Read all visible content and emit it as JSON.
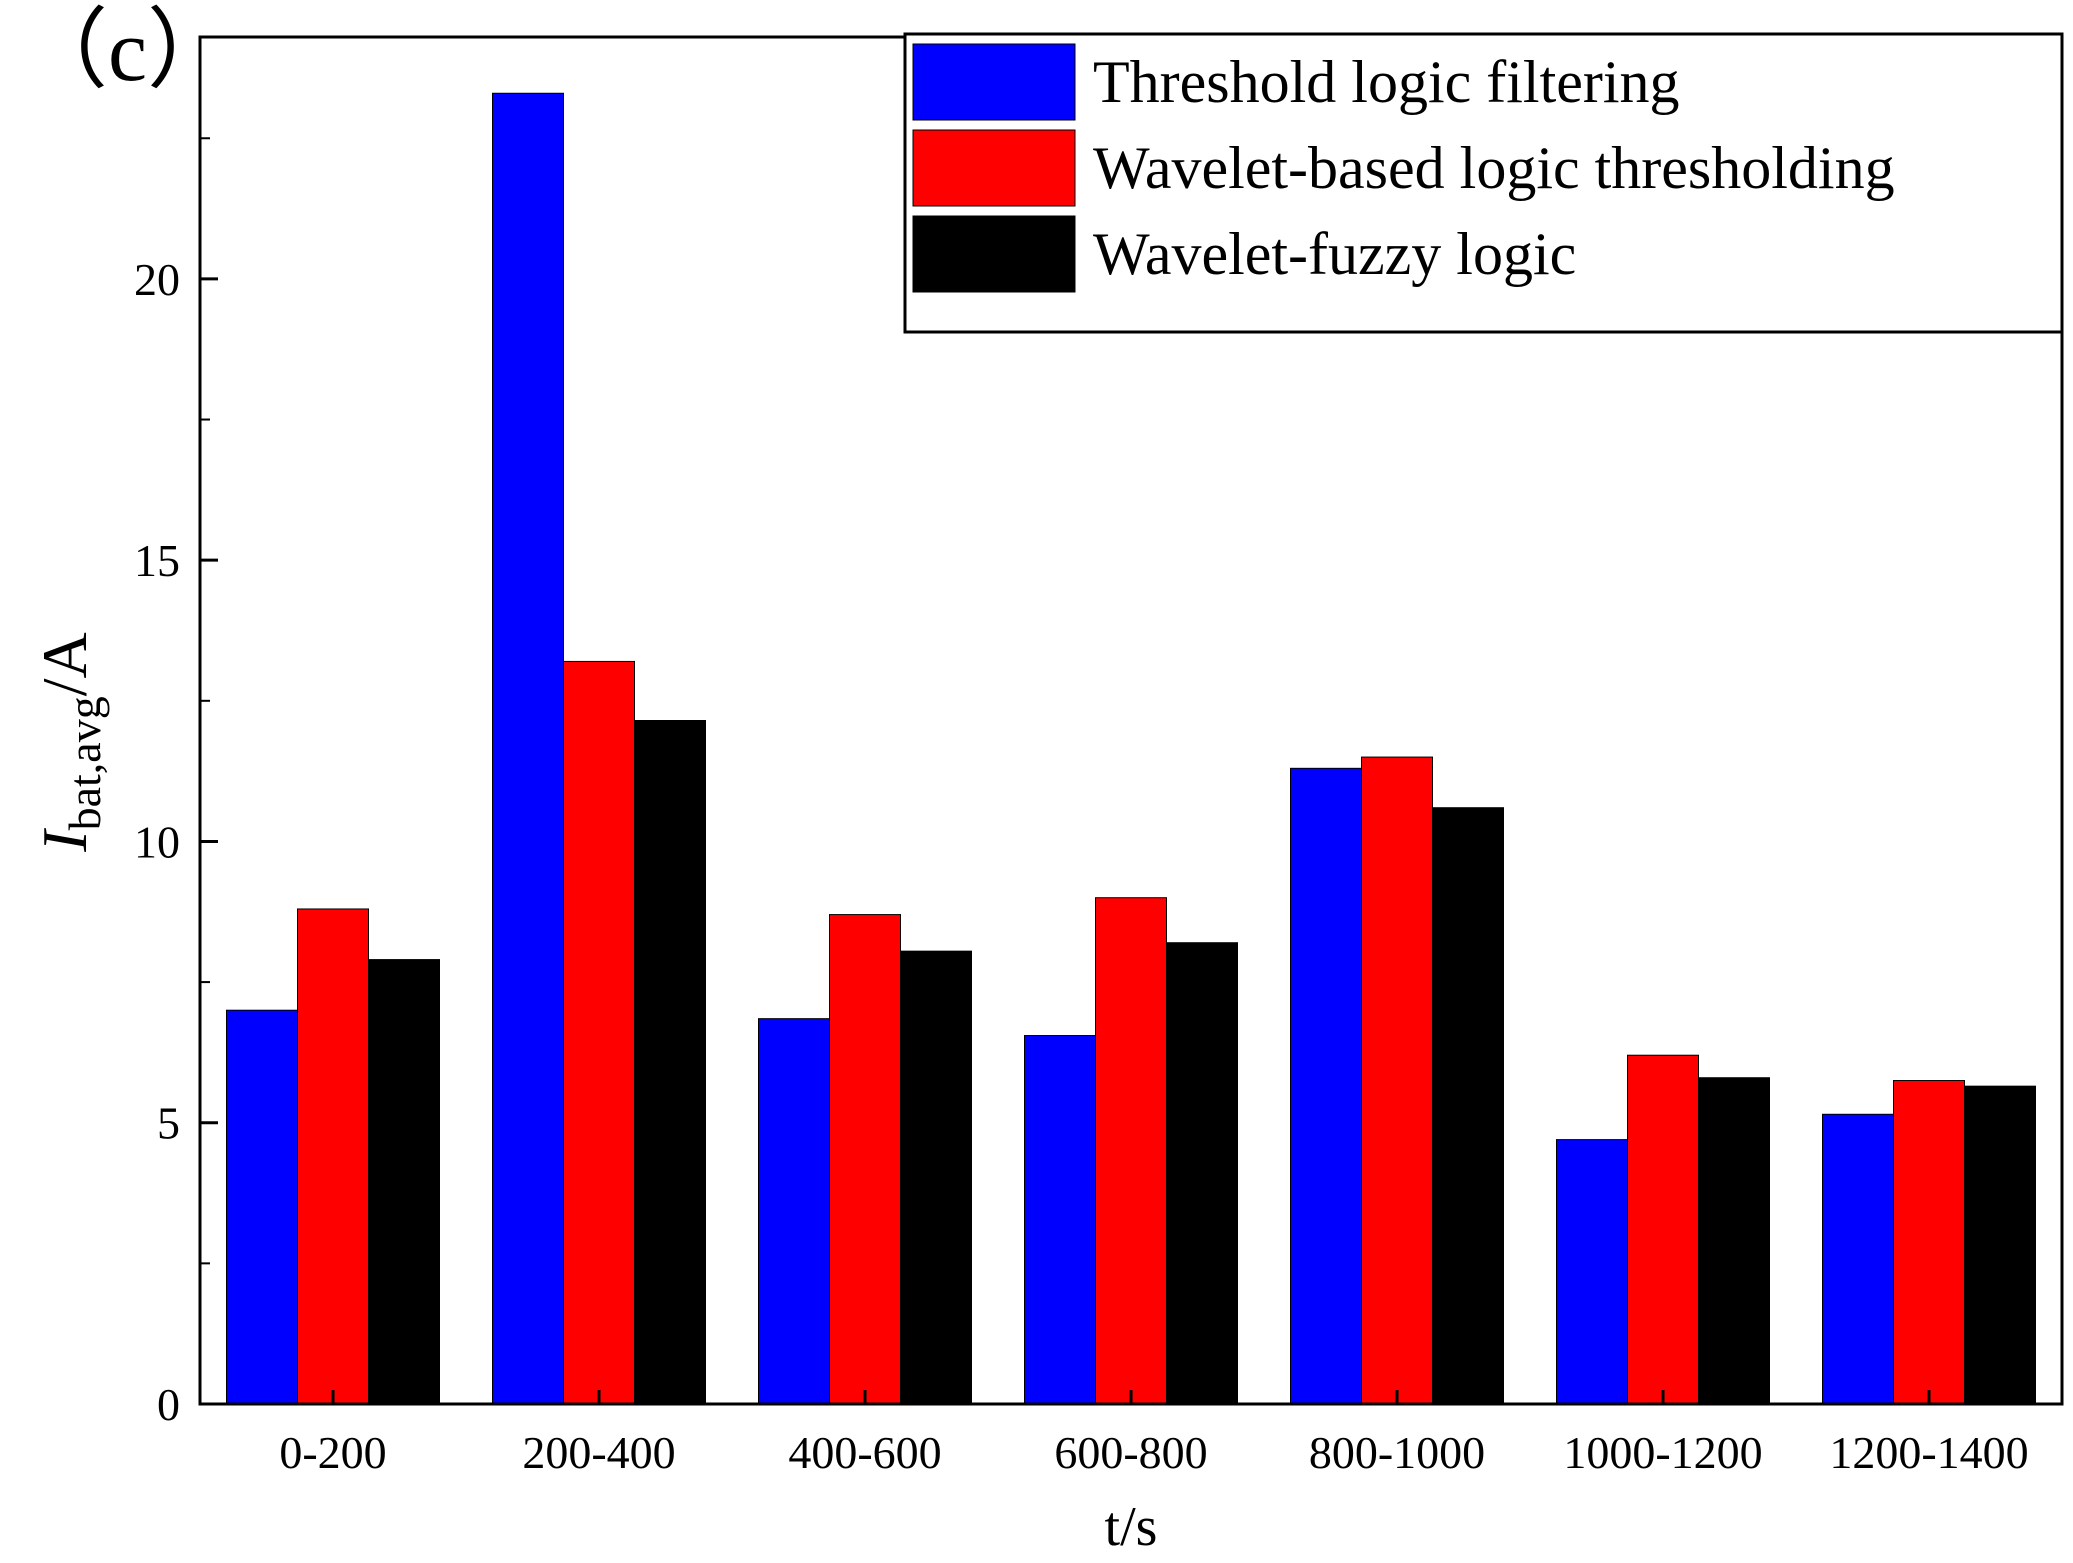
{
  "panel_label": "（c）",
  "chart_data": {
    "type": "bar",
    "categories": [
      "0-200",
      "200-400",
      "400-600",
      "600-800",
      "800-1000",
      "1000-1200",
      "1200-1400"
    ],
    "series": [
      {
        "name": "Threshold logic filtering",
        "color": "#0000ff",
        "values": [
          7.0,
          23.3,
          6.85,
          6.55,
          11.3,
          4.7,
          5.15
        ]
      },
      {
        "name": "Wavelet-based logic thresholding",
        "color": "#ff0000",
        "values": [
          8.8,
          13.2,
          8.7,
          9.0,
          11.5,
          6.2,
          5.75
        ]
      },
      {
        "name": "Wavelet-fuzzy logic",
        "color": "#000000",
        "values": [
          7.9,
          12.15,
          8.05,
          8.2,
          10.6,
          5.8,
          5.65
        ]
      }
    ],
    "xlabel": "t/s",
    "ylabel": {
      "main": "I",
      "sub": "bat,avg",
      "unit": "/A"
    },
    "ylim": [
      0,
      24.3
    ],
    "yticks": [
      0,
      5,
      10,
      15,
      20
    ],
    "legend_position": "top-right",
    "grid": false
  }
}
